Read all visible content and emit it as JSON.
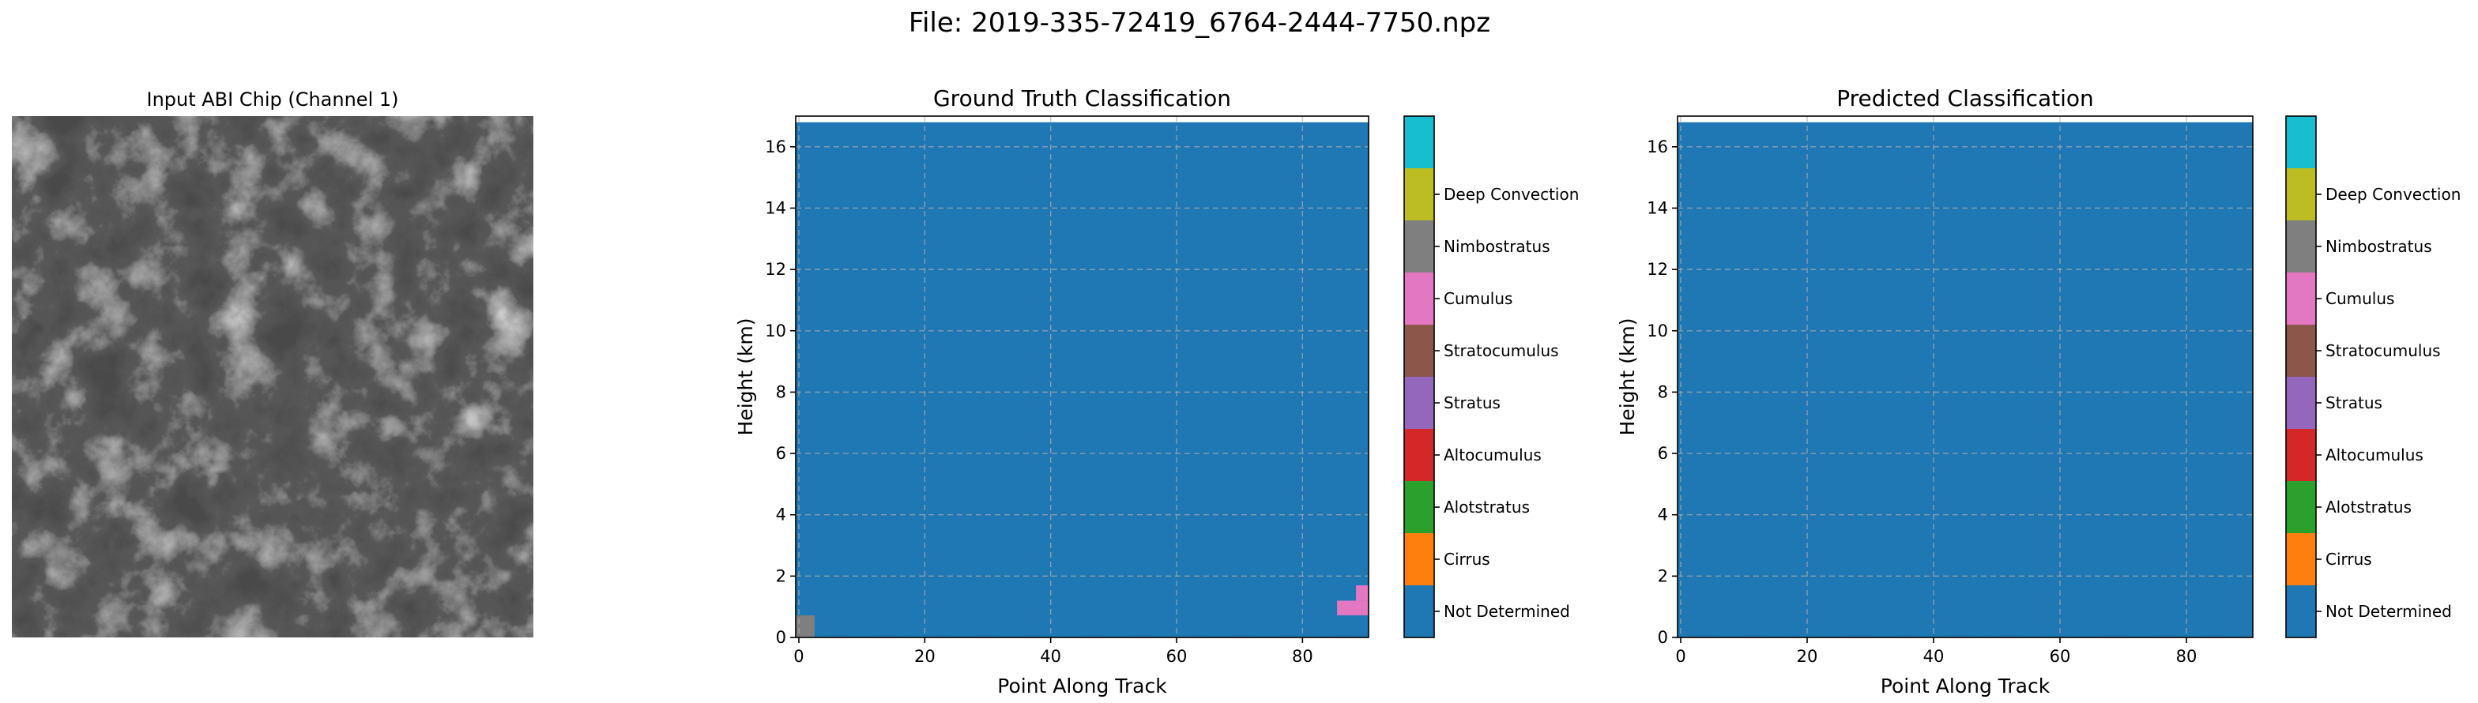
{
  "suptitle": "File: 2019-335-72419_6764-2444-7750.npz",
  "image_panel": {
    "title": "Input ABI Chip (Channel 1)",
    "description": "grayscale satellite chip",
    "colormap": "gray"
  },
  "class_colors": [
    "#1f77b4",
    "#ff7f0e",
    "#2ca02c",
    "#d62728",
    "#9467bd",
    "#8c564b",
    "#e377c2",
    "#7f7f7f",
    "#bcbd22",
    "#17becf"
  ],
  "class_labels": [
    "Not Determined",
    "Cirrus",
    "Alotstratus",
    "Altocumulus",
    "Stratus",
    "Stratocumulus",
    "Cumulus",
    "Nimbostratus",
    "Deep Convection"
  ],
  "chart_data": [
    {
      "type": "heatmap",
      "title": "Ground Truth Classification",
      "xlabel": "Point Along Track",
      "ylabel": "Height (km)",
      "xlim": [
        -0.5,
        90.5
      ],
      "ylim": [
        0,
        17
      ],
      "xticks": [
        0,
        20,
        40,
        60,
        80
      ],
      "yticks": [
        0,
        2,
        4,
        6,
        8,
        10,
        12,
        14,
        16
      ],
      "grid": true,
      "data_top_km": 16.8,
      "background_class": 0,
      "cells": [
        {
          "x0": -0.5,
          "x1": 2.5,
          "y0": 0,
          "y1": 0.72,
          "class": 7
        },
        {
          "x0": 85.5,
          "x1": 90.5,
          "y0": 0.72,
          "y1": 1.2,
          "class": 6
        },
        {
          "x0": 88.5,
          "x1": 90.5,
          "y0": 1.2,
          "y1": 1.7,
          "class": 6
        }
      ]
    },
    {
      "type": "heatmap",
      "title": "Predicted Classification",
      "xlabel": "Point Along Track",
      "ylabel": "Height (km)",
      "xlim": [
        -0.5,
        90.5
      ],
      "ylim": [
        0,
        17
      ],
      "xticks": [
        0,
        20,
        40,
        60,
        80
      ],
      "yticks": [
        0,
        2,
        4,
        6,
        8,
        10,
        12,
        14,
        16
      ],
      "grid": true,
      "data_top_km": 16.8,
      "background_class": 0,
      "cells": []
    }
  ]
}
